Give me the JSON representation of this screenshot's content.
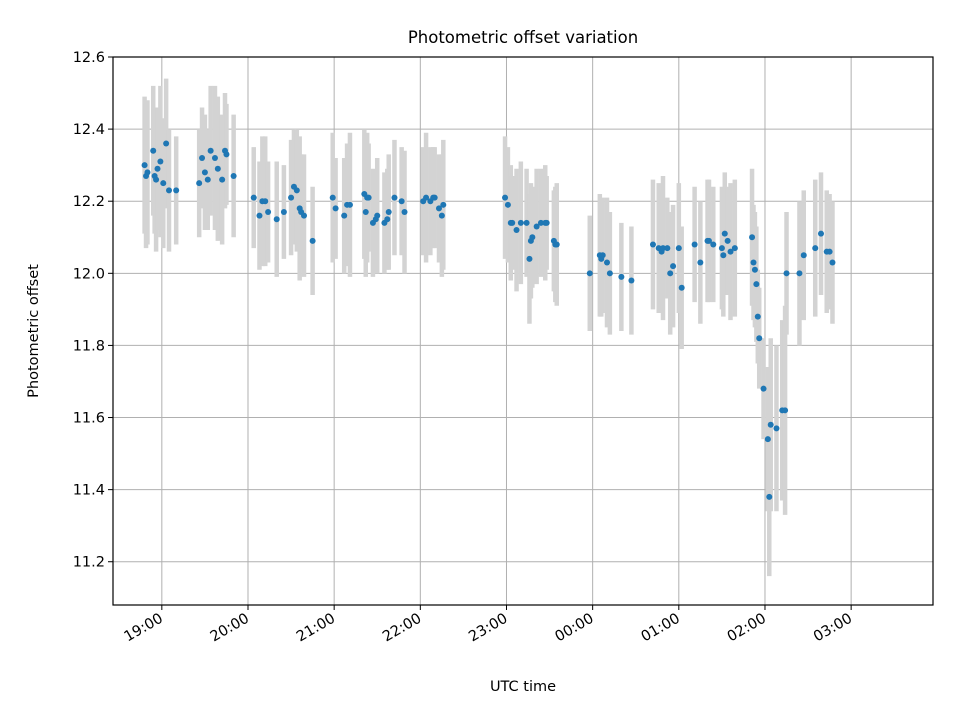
{
  "chart_data": {
    "type": "scatter",
    "title": "Photometric offset variation",
    "xlabel": "UTC time",
    "ylabel": "Photometric offset",
    "x_ticks": [
      "19:00",
      "20:00",
      "21:00",
      "22:00",
      "23:00",
      "00:00",
      "01:00",
      "02:00",
      "03:00"
    ],
    "y_ticks": [
      11.2,
      11.4,
      11.6,
      11.8,
      12.0,
      12.2,
      12.4,
      12.6
    ],
    "xlim": [
      "18:26",
      "03:57"
    ],
    "ylim": [
      11.08,
      12.6
    ],
    "grid": true,
    "colors": {
      "marker": "#1f77b4",
      "errorbar": "#d3d3d3",
      "grid": "#b0b0b0"
    },
    "x": [
      "18:48",
      "18:49",
      "18:50",
      "18:54",
      "18:55",
      "18:56",
      "18:57",
      "18:59",
      "19:01",
      "19:03",
      "19:05",
      "19:10",
      "19:26",
      "19:28",
      "19:30",
      "19:32",
      "19:34",
      "19:37",
      "19:39",
      "19:42",
      "19:44",
      "19:45",
      "19:50",
      "20:04",
      "20:08",
      "20:10",
      "20:12",
      "20:14",
      "20:20",
      "20:25",
      "20:30",
      "20:32",
      "20:34",
      "20:36",
      "20:37",
      "20:39",
      "20:45",
      "20:59",
      "21:01",
      "21:07",
      "21:09",
      "21:11",
      "21:21",
      "21:22",
      "21:23",
      "21:24",
      "21:27",
      "21:29",
      "21:30",
      "21:35",
      "21:37",
      "21:38",
      "21:42",
      "21:47",
      "21:49",
      "22:02",
      "22:04",
      "22:07",
      "22:09",
      "22:10",
      "22:13",
      "22:15",
      "22:16",
      "22:59",
      "23:01",
      "23:03",
      "23:04",
      "23:07",
      "23:10",
      "23:14",
      "23:16",
      "23:17",
      "23:18",
      "23:21",
      "23:24",
      "23:27",
      "23:28",
      "23:33",
      "23:34",
      "23:35",
      "23:58",
      "00:05",
      "00:06",
      "00:07",
      "00:10",
      "00:12",
      "00:20",
      "00:27",
      "00:42",
      "00:46",
      "00:48",
      "00:49",
      "00:52",
      "00:54",
      "00:56",
      "01:00",
      "01:02",
      "01:11",
      "01:15",
      "01:20",
      "01:21",
      "01:24",
      "01:30",
      "01:31",
      "01:32",
      "01:34",
      "01:36",
      "01:39",
      "01:51",
      "01:52",
      "01:53",
      "01:54",
      "01:55",
      "01:56",
      "01:59",
      "02:02",
      "02:03",
      "02:04",
      "02:08",
      "02:12",
      "02:14",
      "02:15",
      "02:24",
      "02:27",
      "02:35",
      "02:39",
      "02:43",
      "02:45",
      "02:47"
    ],
    "series": [
      {
        "values": [
          12.3,
          12.27,
          12.28,
          12.34,
          12.27,
          12.26,
          12.29,
          12.31,
          12.25,
          12.36,
          12.23,
          12.23,
          12.25,
          12.32,
          12.28,
          12.26,
          12.34,
          12.32,
          12.29,
          12.26,
          12.34,
          12.33,
          12.27,
          12.21,
          12.16,
          12.2,
          12.2,
          12.17,
          12.15,
          12.17,
          12.21,
          12.24,
          12.23,
          12.18,
          12.17,
          12.16,
          12.09,
          12.21,
          12.18,
          12.16,
          12.19,
          12.19,
          12.22,
          12.17,
          12.21,
          12.21,
          12.14,
          12.15,
          12.16,
          12.14,
          12.15,
          12.17,
          12.21,
          12.2,
          12.17,
          12.2,
          12.21,
          12.2,
          12.21,
          12.21,
          12.18,
          12.16,
          12.19,
          12.21,
          12.19,
          12.14,
          12.14,
          12.12,
          12.14,
          12.14,
          12.04,
          12.09,
          12.1,
          12.13,
          12.14,
          12.14,
          12.14,
          12.09,
          12.08,
          12.08,
          12.0,
          12.05,
          12.04,
          12.05,
          12.03,
          12.0,
          11.99,
          11.98,
          12.08,
          12.07,
          12.06,
          12.07,
          12.07,
          12.0,
          12.02,
          12.07,
          11.96,
          12.08,
          12.03,
          12.09,
          12.09,
          12.08,
          12.07,
          12.05,
          12.11,
          12.09,
          12.06,
          12.07,
          12.1,
          12.03,
          12.01,
          11.97,
          11.88,
          11.82,
          11.68,
          11.54,
          11.38,
          11.58,
          11.57,
          11.62,
          11.62,
          12.0,
          12.0,
          12.05,
          12.07,
          12.11,
          12.06,
          12.06,
          12.03
        ],
        "errors": [
          0.19,
          0.2,
          0.2,
          0.18,
          0.16,
          0.2,
          0.17,
          0.21,
          0.18,
          0.18,
          0.17,
          0.15,
          0.15,
          0.14,
          0.16,
          0.14,
          0.18,
          0.2,
          0.2,
          0.18,
          0.16,
          0.14,
          0.17,
          0.14,
          0.15,
          0.18,
          0.18,
          0.14,
          0.16,
          0.13,
          0.16,
          0.16,
          0.17,
          0.2,
          0.16,
          0.17,
          0.15,
          0.18,
          0.14,
          0.16,
          0.17,
          0.2,
          0.18,
          0.18,
          0.18,
          0.15,
          0.15,
          0.12,
          0.16,
          0.14,
          0.14,
          0.16,
          0.16,
          0.15,
          0.17,
          0.15,
          0.18,
          0.15,
          0.14,
          0.14,
          0.15,
          0.17,
          0.18,
          0.17,
          0.16,
          0.16,
          0.13,
          0.17,
          0.17,
          0.15,
          0.18,
          0.16,
          0.14,
          0.16,
          0.15,
          0.16,
          0.13,
          0.14,
          0.16,
          0.17,
          0.16,
          0.17,
          0.16,
          0.16,
          0.18,
          0.17,
          0.15,
          0.15,
          0.18,
          0.18,
          0.17,
          0.2,
          0.14,
          0.17,
          0.17,
          0.18,
          0.17,
          0.16,
          0.17,
          0.17,
          0.17,
          0.16,
          0.17,
          0.17,
          0.17,
          0.15,
          0.19,
          0.19,
          0.19,
          0.16,
          0.16,
          0.16,
          0.13,
          0.14,
          0.14,
          0.2,
          0.22,
          0.24,
          0.23,
          0.25,
          0.29,
          0.17,
          0.2,
          0.18,
          0.19,
          0.17,
          0.17,
          0.16,
          0.17
        ]
      }
    ]
  }
}
